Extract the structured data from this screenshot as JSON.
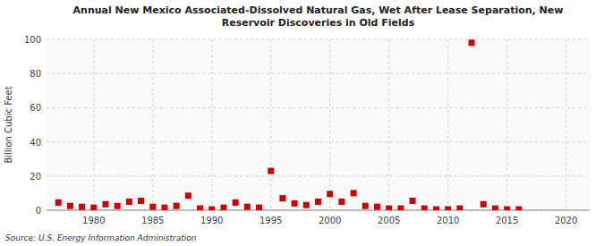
{
  "chart_data": {
    "type": "scatter",
    "title": "Annual New Mexico Associated-Dissolved Natural Gas, Wet After Lease Separation, New\nReservoir Discoveries in Old Fields",
    "y_label": "Billion Cubic Feet",
    "source": "Source: U.S. Energy Information Administration",
    "color": "#cc0000",
    "marker": "square",
    "grid": true,
    "xlim": [
      1976,
      2022
    ],
    "ylim": [
      0,
      100
    ],
    "xticks": [
      1980,
      1985,
      1990,
      1995,
      2000,
      2005,
      2010,
      2015,
      2020
    ],
    "yticks": [
      0,
      20,
      40,
      60,
      80,
      100
    ],
    "x": [
      1977,
      1978,
      1979,
      1980,
      1981,
      1982,
      1983,
      1984,
      1985,
      1986,
      1987,
      1988,
      1989,
      1990,
      1991,
      1992,
      1993,
      1994,
      1995,
      1996,
      1997,
      1998,
      1999,
      2000,
      2001,
      2002,
      2003,
      2004,
      2005,
      2006,
      2007,
      2008,
      2009,
      2010,
      2011,
      2012,
      2013,
      2014,
      2015,
      2016
    ],
    "values": [
      4.5,
      2.5,
      2.0,
      1.5,
      3.5,
      2.5,
      5.0,
      5.5,
      2.0,
      1.5,
      2.5,
      8.5,
      1.0,
      0.5,
      1.5,
      4.5,
      2.0,
      1.5,
      23.0,
      7.0,
      4.0,
      3.0,
      5.0,
      9.5,
      5.0,
      10.0,
      2.5,
      2.0,
      1.0,
      1.0,
      5.5,
      1.0,
      0.5,
      0.5,
      1.0,
      98.0,
      3.5,
      1.0,
      0.5,
      0.5
    ]
  }
}
